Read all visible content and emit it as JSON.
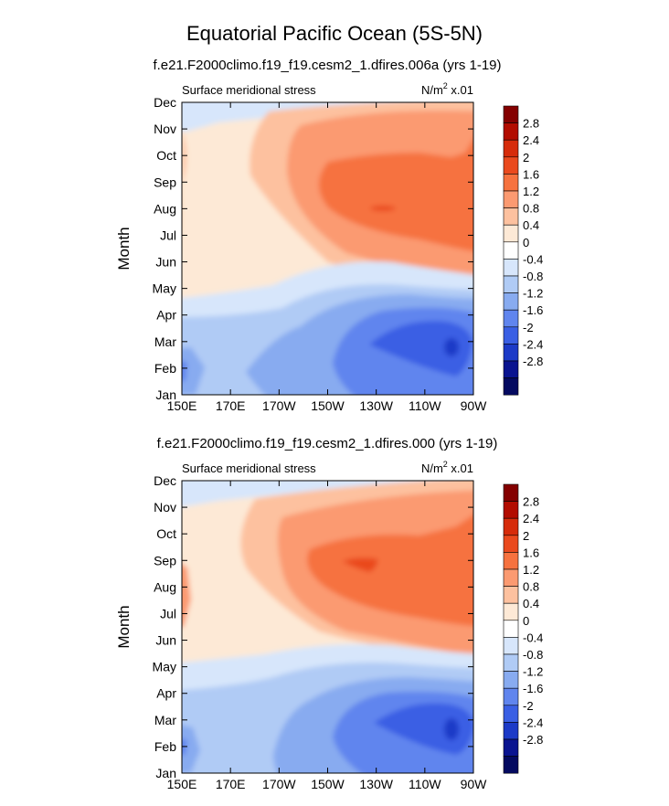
{
  "figure": {
    "title": "Equatorial Pacific Ocean (5S-5N)"
  },
  "colorbar": {
    "levels": [
      "2.8",
      "2.4",
      "2",
      "1.6",
      "1.2",
      "0.8",
      "0.4",
      "0",
      "-0.4",
      "-0.8",
      "-1.2",
      "-1.6",
      "-2",
      "-2.4",
      "-2.8"
    ],
    "colors": [
      "#840000",
      "#b20c00",
      "#d62c0b",
      "#ea4a1e",
      "#f6723f",
      "#fb9a71",
      "#fdc19f",
      "#fde9d6",
      "#ffffff",
      "#d7e6fb",
      "#b0cbf5",
      "#88abf0",
      "#6085ee",
      "#3a5fe4",
      "#1c3ac7",
      "#0a1490",
      "#040a60"
    ]
  },
  "chart_data": [
    {
      "type": "heatmap",
      "subtitle": "f.e21.F2000climo.f19_f19.cesm2_1.dfires.006a (yrs 1-19)",
      "left_string": "Surface meridional stress",
      "units_main": "N/m",
      "units_sup": "2",
      "units_suffix": " x.01",
      "ylabel": "Month",
      "x_tick_labels": [
        "150E",
        "170E",
        "170W",
        "150W",
        "130W",
        "110W",
        "90W"
      ],
      "x": [
        150,
        170,
        190,
        210,
        230,
        250,
        270
      ],
      "y_tick_labels": [
        "Jan",
        "Feb",
        "Mar",
        "Apr",
        "May",
        "Jun",
        "Jul",
        "Aug",
        "Sep",
        "Oct",
        "Nov",
        "Dec"
      ],
      "xlim": [
        150,
        270
      ],
      "ylim": [
        1,
        12
      ],
      "contour_levels": [
        -2.8,
        -2.4,
        -2.0,
        -1.6,
        -1.2,
        -0.8,
        -0.4,
        0,
        0.4,
        0.8,
        1.2,
        1.6,
        2.0,
        2.4,
        2.8
      ],
      "value_range": [
        -2.5,
        1.8
      ]
    },
    {
      "type": "heatmap",
      "subtitle": "f.e21.F2000climo.f19_f19.cesm2_1.dfires.000 (yrs 1-19)",
      "left_string": "Surface meridional stress",
      "units_main": "N/m",
      "units_sup": "2",
      "units_suffix": " x.01",
      "ylabel": "Month",
      "x_tick_labels": [
        "150E",
        "170E",
        "170W",
        "150W",
        "130W",
        "110W",
        "90W"
      ],
      "x": [
        150,
        170,
        190,
        210,
        230,
        250,
        270
      ],
      "y_tick_labels": [
        "Jan",
        "Feb",
        "Mar",
        "Apr",
        "May",
        "Jun",
        "Jul",
        "Aug",
        "Sep",
        "Oct",
        "Nov",
        "Dec"
      ],
      "xlim": [
        150,
        270
      ],
      "ylim": [
        1,
        12
      ],
      "contour_levels": [
        -2.8,
        -2.4,
        -2.0,
        -1.6,
        -1.2,
        -0.8,
        -0.4,
        0,
        0.4,
        0.8,
        1.2,
        1.6,
        2.0,
        2.4,
        2.8
      ],
      "value_range": [
        -2.5,
        1.8
      ]
    }
  ]
}
